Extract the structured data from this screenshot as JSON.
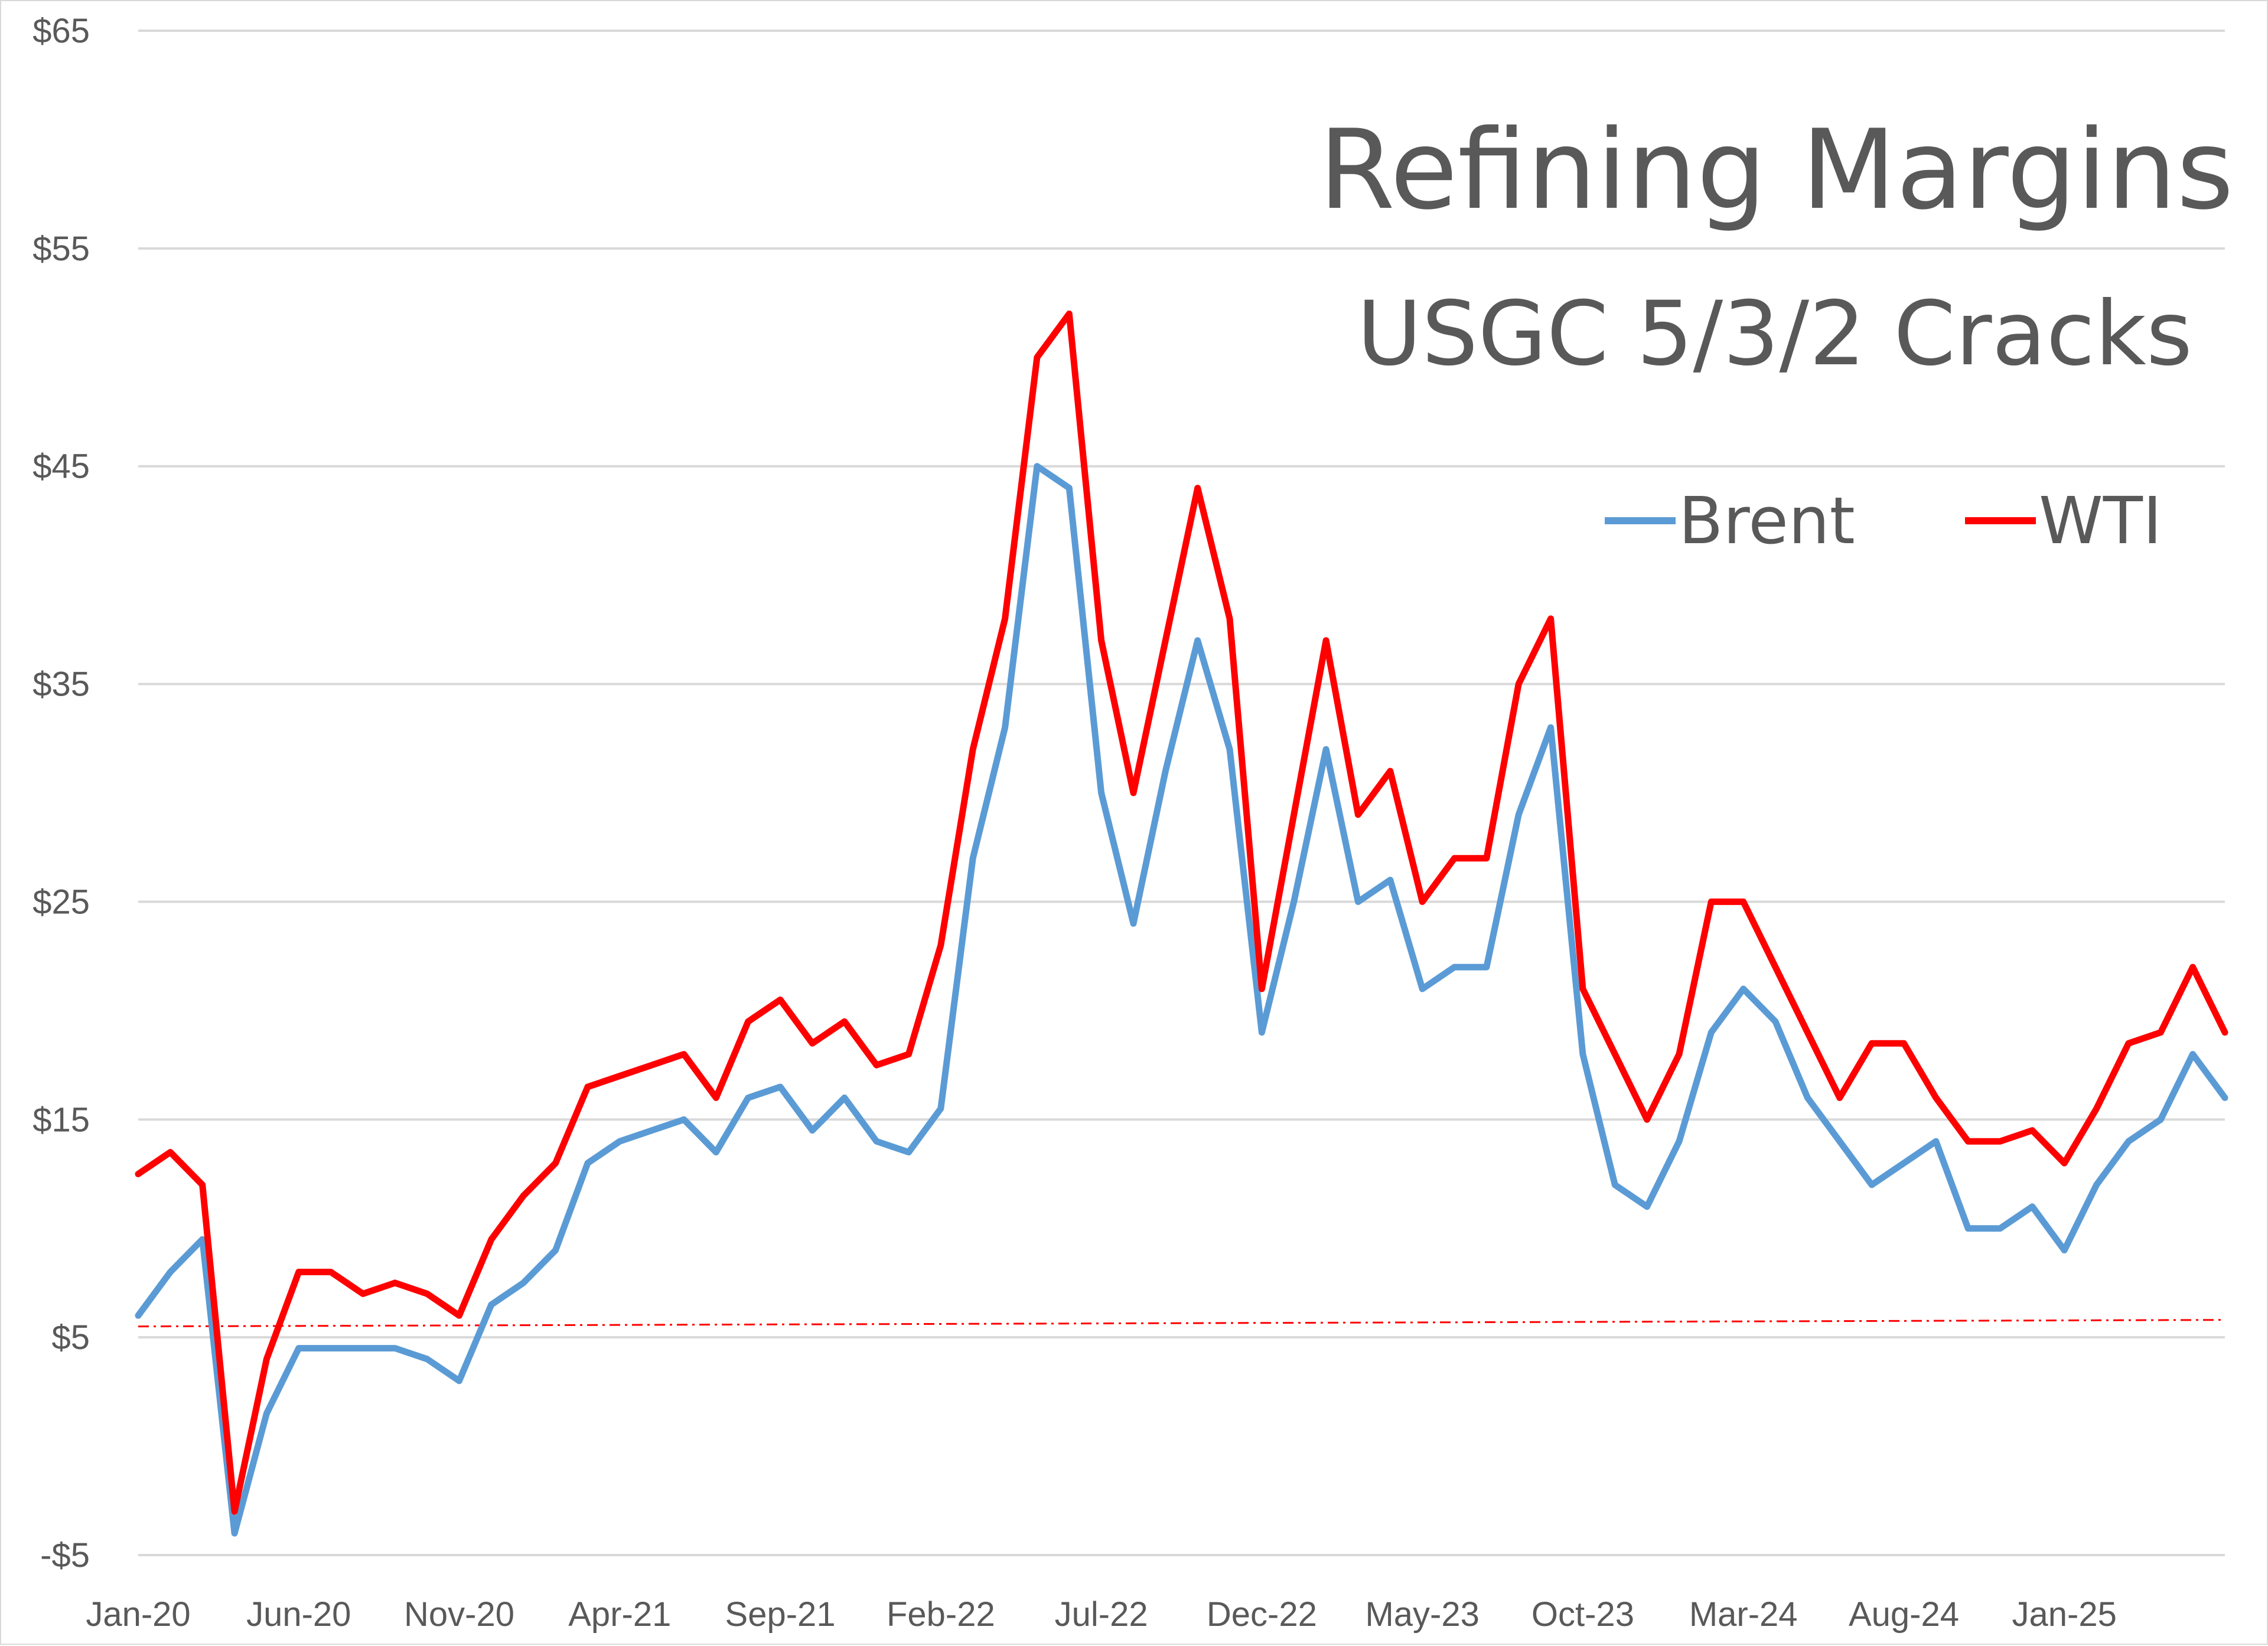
{
  "chart_data": {
    "type": "line",
    "title": "Refining Margins",
    "subtitle": "USGC 5/3/2 Cracks",
    "xlabel": "",
    "ylabel": "",
    "ylim": [
      -5,
      65
    ],
    "y_ticks": [
      -5,
      5,
      15,
      25,
      35,
      45,
      55,
      65
    ],
    "y_tick_labels": [
      "-$5",
      "$5",
      "$15",
      "$25",
      "$35",
      "$45",
      "$55",
      "$65"
    ],
    "x_tick_labels": [
      "Jan-20",
      "Jun-20",
      "Nov-20",
      "Apr-21",
      "Sep-21",
      "Feb-22",
      "Jul-22",
      "Dec-22",
      "May-23",
      "Oct-23",
      "Mar-24",
      "Aug-24",
      "Jan-25"
    ],
    "grid": true,
    "legend_position": "top-right",
    "reference_line": {
      "style": "dash-dot",
      "color": "#ff0000",
      "y_start": 5.5,
      "y_end": 5.8
    },
    "x": [
      "Jan-20",
      "Feb-20",
      "Mar-20",
      "Apr-20",
      "May-20",
      "Jun-20",
      "Jul-20",
      "Aug-20",
      "Sep-20",
      "Oct-20",
      "Nov-20",
      "Dec-20",
      "Jan-21",
      "Feb-21",
      "Mar-21",
      "Apr-21",
      "May-21",
      "Jun-21",
      "Jul-21",
      "Aug-21",
      "Sep-21",
      "Oct-21",
      "Nov-21",
      "Dec-21",
      "Jan-22",
      "Feb-22",
      "Mar-22",
      "Apr-22",
      "May-22",
      "Jun-22",
      "Jul-22",
      "Aug-22",
      "Sep-22",
      "Oct-22",
      "Nov-22",
      "Dec-22",
      "Jan-23",
      "Feb-23",
      "Mar-23",
      "Apr-23",
      "May-23",
      "Jun-23",
      "Jul-23",
      "Aug-23",
      "Sep-23",
      "Oct-23",
      "Nov-23",
      "Dec-23",
      "Jan-24",
      "Feb-24",
      "Mar-24",
      "Apr-24",
      "May-24",
      "Jun-24",
      "Jul-24",
      "Aug-24",
      "Sep-24",
      "Oct-24",
      "Nov-24",
      "Dec-24",
      "Jan-25",
      "Feb-25",
      "Mar-25",
      "Apr-25",
      "May-25",
      "Jun-25"
    ],
    "series": [
      {
        "name": "Brent",
        "color": "#5b9bd5",
        "values": [
          6.0,
          8.0,
          9.5,
          -4.0,
          1.5,
          4.5,
          4.5,
          4.5,
          4.5,
          4.0,
          3.0,
          6.5,
          7.5,
          9.0,
          13.0,
          14.0,
          14.5,
          15.0,
          13.5,
          16.0,
          16.5,
          14.5,
          16.0,
          14.0,
          13.5,
          15.5,
          27.0,
          33.0,
          45.0,
          44.0,
          30.0,
          24.0,
          31.0,
          37.0,
          32.0,
          19.0,
          25.0,
          32.0,
          25.0,
          26.0,
          21.0,
          22.0,
          22.0,
          29.0,
          33.0,
          18.0,
          12.0,
          11.0,
          14.0,
          19.0,
          21.0,
          19.5,
          16.0,
          14.0,
          12.0,
          13.0,
          14.0,
          10.0,
          10.0,
          11.0,
          9.0,
          12.0,
          14.0,
          15.0,
          18.0,
          16.0
        ]
      },
      {
        "name": "WTI",
        "color": "#ff0000",
        "values": [
          12.5,
          13.5,
          12.0,
          -3.0,
          4.0,
          8.0,
          8.0,
          7.0,
          7.5,
          7.0,
          6.0,
          9.5,
          11.5,
          13.0,
          16.5,
          17.0,
          17.5,
          18.0,
          16.0,
          19.5,
          20.5,
          18.5,
          19.5,
          17.5,
          18.0,
          23.0,
          32.0,
          38.0,
          50.0,
          52.0,
          37.0,
          30.0,
          37.0,
          44.0,
          38.0,
          21.0,
          29.0,
          37.0,
          29.0,
          31.0,
          25.0,
          27.0,
          27.0,
          35.0,
          38.0,
          21.0,
          18.0,
          15.0,
          18.0,
          25.0,
          25.0,
          22.0,
          19.0,
          16.0,
          18.5,
          18.5,
          16.0,
          14.0,
          14.0,
          14.5,
          13.0,
          15.5,
          18.5,
          19.0,
          22.0,
          19.0
        ]
      }
    ]
  }
}
